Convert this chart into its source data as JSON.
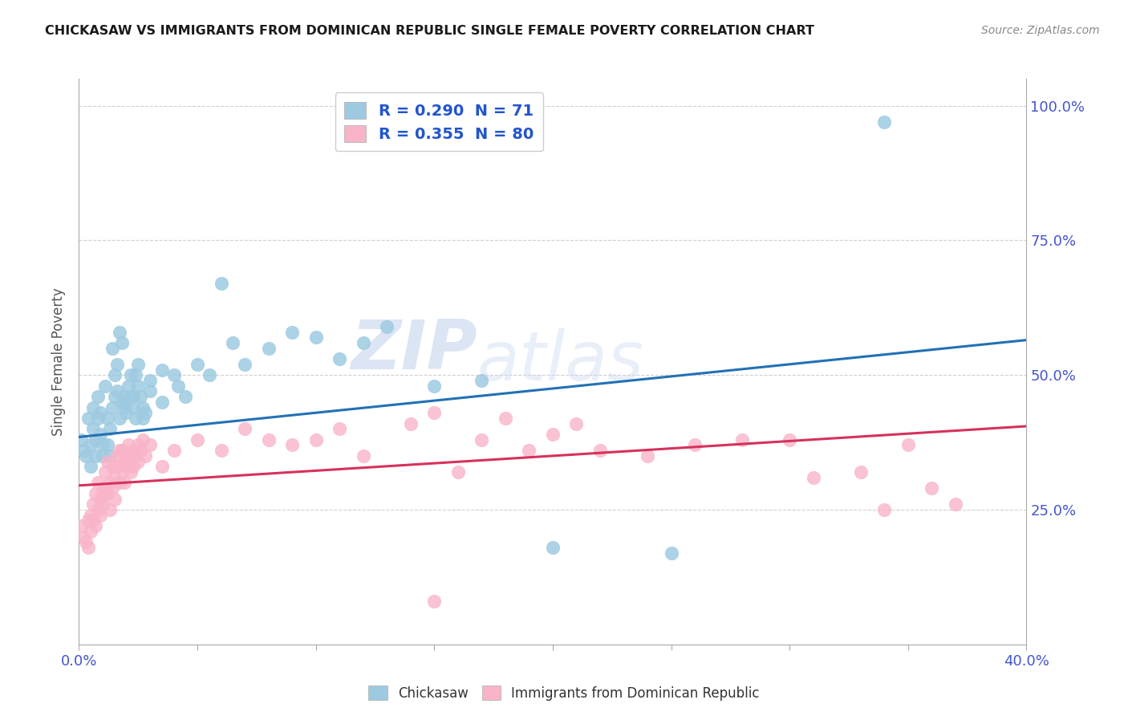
{
  "title": "CHICKASAW VS IMMIGRANTS FROM DOMINICAN REPUBLIC SINGLE FEMALE POVERTY CORRELATION CHART",
  "source": "Source: ZipAtlas.com",
  "ylabel": "Single Female Poverty",
  "y_tick_labels": [
    "100.0%",
    "75.0%",
    "50.0%",
    "25.0%"
  ],
  "y_tick_values": [
    1.0,
    0.75,
    0.5,
    0.25
  ],
  "legend1_text": "R = 0.290  N = 71",
  "legend2_text": "R = 0.355  N = 80",
  "blue_color": "#9ecae1",
  "pink_color": "#f9b4c8",
  "trendline_blue": "#2171b5",
  "trendline_pink": "#d6315b",
  "watermark_zip": "ZIP",
  "watermark_atlas": "atlas",
  "blue_scatter": [
    [
      0.001,
      0.38
    ],
    [
      0.002,
      0.36
    ],
    [
      0.003,
      0.35
    ],
    [
      0.004,
      0.42
    ],
    [
      0.005,
      0.33
    ],
    [
      0.005,
      0.37
    ],
    [
      0.006,
      0.4
    ],
    [
      0.006,
      0.44
    ],
    [
      0.007,
      0.38
    ],
    [
      0.007,
      0.35
    ],
    [
      0.008,
      0.46
    ],
    [
      0.008,
      0.42
    ],
    [
      0.009,
      0.39
    ],
    [
      0.009,
      0.43
    ],
    [
      0.01,
      0.35
    ],
    [
      0.01,
      0.37
    ],
    [
      0.011,
      0.48
    ],
    [
      0.012,
      0.42
    ],
    [
      0.012,
      0.37
    ],
    [
      0.013,
      0.4
    ],
    [
      0.013,
      0.35
    ],
    [
      0.014,
      0.44
    ],
    [
      0.014,
      0.55
    ],
    [
      0.015,
      0.5
    ],
    [
      0.015,
      0.46
    ],
    [
      0.016,
      0.52
    ],
    [
      0.016,
      0.47
    ],
    [
      0.017,
      0.42
    ],
    [
      0.017,
      0.58
    ],
    [
      0.018,
      0.56
    ],
    [
      0.018,
      0.45
    ],
    [
      0.019,
      0.44
    ],
    [
      0.019,
      0.46
    ],
    [
      0.02,
      0.43
    ],
    [
      0.02,
      0.45
    ],
    [
      0.021,
      0.48
    ],
    [
      0.022,
      0.46
    ],
    [
      0.022,
      0.5
    ],
    [
      0.023,
      0.44
    ],
    [
      0.023,
      0.46
    ],
    [
      0.024,
      0.42
    ],
    [
      0.024,
      0.5
    ],
    [
      0.025,
      0.48
    ],
    [
      0.025,
      0.52
    ],
    [
      0.026,
      0.46
    ],
    [
      0.027,
      0.44
    ],
    [
      0.027,
      0.42
    ],
    [
      0.028,
      0.43
    ],
    [
      0.03,
      0.47
    ],
    [
      0.03,
      0.49
    ],
    [
      0.035,
      0.51
    ],
    [
      0.035,
      0.45
    ],
    [
      0.04,
      0.5
    ],
    [
      0.042,
      0.48
    ],
    [
      0.045,
      0.46
    ],
    [
      0.05,
      0.52
    ],
    [
      0.055,
      0.5
    ],
    [
      0.06,
      0.67
    ],
    [
      0.065,
      0.56
    ],
    [
      0.07,
      0.52
    ],
    [
      0.08,
      0.55
    ],
    [
      0.09,
      0.58
    ],
    [
      0.1,
      0.57
    ],
    [
      0.11,
      0.53
    ],
    [
      0.12,
      0.56
    ],
    [
      0.13,
      0.59
    ],
    [
      0.15,
      0.48
    ],
    [
      0.17,
      0.49
    ],
    [
      0.2,
      0.18
    ],
    [
      0.25,
      0.17
    ],
    [
      0.34,
      0.97
    ]
  ],
  "pink_scatter": [
    [
      0.001,
      0.22
    ],
    [
      0.002,
      0.2
    ],
    [
      0.003,
      0.19
    ],
    [
      0.004,
      0.23
    ],
    [
      0.004,
      0.18
    ],
    [
      0.005,
      0.24
    ],
    [
      0.005,
      0.21
    ],
    [
      0.006,
      0.26
    ],
    [
      0.006,
      0.23
    ],
    [
      0.007,
      0.22
    ],
    [
      0.007,
      0.28
    ],
    [
      0.008,
      0.25
    ],
    [
      0.008,
      0.3
    ],
    [
      0.009,
      0.27
    ],
    [
      0.009,
      0.24
    ],
    [
      0.01,
      0.28
    ],
    [
      0.01,
      0.26
    ],
    [
      0.011,
      0.32
    ],
    [
      0.011,
      0.29
    ],
    [
      0.012,
      0.34
    ],
    [
      0.012,
      0.28
    ],
    [
      0.013,
      0.3
    ],
    [
      0.013,
      0.25
    ],
    [
      0.014,
      0.29
    ],
    [
      0.014,
      0.33
    ],
    [
      0.015,
      0.31
    ],
    [
      0.015,
      0.27
    ],
    [
      0.016,
      0.35
    ],
    [
      0.016,
      0.33
    ],
    [
      0.017,
      0.3
    ],
    [
      0.017,
      0.36
    ],
    [
      0.018,
      0.32
    ],
    [
      0.018,
      0.36
    ],
    [
      0.019,
      0.34
    ],
    [
      0.019,
      0.3
    ],
    [
      0.02,
      0.33
    ],
    [
      0.02,
      0.35
    ],
    [
      0.021,
      0.37
    ],
    [
      0.021,
      0.33
    ],
    [
      0.022,
      0.35
    ],
    [
      0.022,
      0.32
    ],
    [
      0.023,
      0.36
    ],
    [
      0.023,
      0.33
    ],
    [
      0.024,
      0.35
    ],
    [
      0.025,
      0.37
    ],
    [
      0.025,
      0.34
    ],
    [
      0.026,
      0.36
    ],
    [
      0.027,
      0.38
    ],
    [
      0.028,
      0.35
    ],
    [
      0.03,
      0.37
    ],
    [
      0.035,
      0.33
    ],
    [
      0.04,
      0.36
    ],
    [
      0.05,
      0.38
    ],
    [
      0.06,
      0.36
    ],
    [
      0.07,
      0.4
    ],
    [
      0.08,
      0.38
    ],
    [
      0.09,
      0.37
    ],
    [
      0.1,
      0.38
    ],
    [
      0.11,
      0.4
    ],
    [
      0.12,
      0.35
    ],
    [
      0.14,
      0.41
    ],
    [
      0.15,
      0.43
    ],
    [
      0.16,
      0.32
    ],
    [
      0.17,
      0.38
    ],
    [
      0.18,
      0.42
    ],
    [
      0.19,
      0.36
    ],
    [
      0.2,
      0.39
    ],
    [
      0.21,
      0.41
    ],
    [
      0.22,
      0.36
    ],
    [
      0.24,
      0.35
    ],
    [
      0.26,
      0.37
    ],
    [
      0.28,
      0.38
    ],
    [
      0.3,
      0.38
    ],
    [
      0.31,
      0.31
    ],
    [
      0.33,
      0.32
    ],
    [
      0.34,
      0.25
    ],
    [
      0.35,
      0.37
    ],
    [
      0.36,
      0.29
    ],
    [
      0.37,
      0.26
    ],
    [
      0.15,
      0.08
    ]
  ],
  "blue_trend_x": [
    0.0,
    0.4
  ],
  "blue_trend_y": [
    0.385,
    0.565
  ],
  "pink_trend_x": [
    0.0,
    0.4
  ],
  "pink_trend_y": [
    0.295,
    0.405
  ],
  "xmin": 0.0,
  "xmax": 0.4,
  "ymin": 0.0,
  "ymax": 1.05,
  "background_color": "#ffffff",
  "grid_color": "#d0d0d0",
  "title_color": "#1a1a1a",
  "source_color": "#888888",
  "tick_color": "#4455cc",
  "ylabel_color": "#555555"
}
